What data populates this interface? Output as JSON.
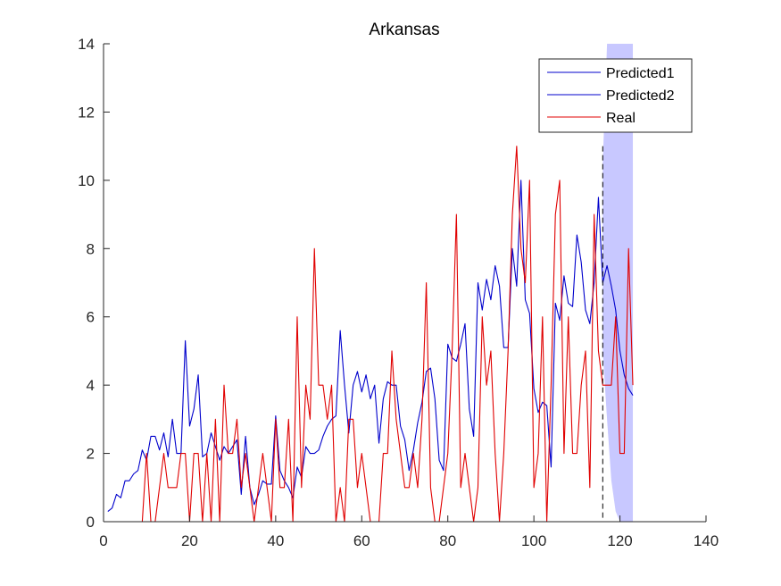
{
  "chart_data": {
    "type": "line",
    "title": "Arkansas",
    "xlabel": "",
    "ylabel": "",
    "xlim": [
      0,
      140
    ],
    "ylim": [
      0,
      14
    ],
    "xticks": [
      "0",
      "20",
      "40",
      "60",
      "80",
      "100",
      "120",
      "140"
    ],
    "yticks": [
      "0",
      "2",
      "4",
      "6",
      "8",
      "10",
      "12",
      "14"
    ],
    "grid": false,
    "legend_position": "top-right",
    "forecast_start_x": 116,
    "confidence_band": {
      "color": "#c8c8ff",
      "x": [
        116,
        117,
        118,
        119,
        120,
        121,
        122,
        123
      ],
      "lower": [
        5.0,
        3.0,
        1.2,
        0.3,
        0,
        0,
        0,
        0
      ],
      "upper": [
        10.5,
        14,
        14,
        14,
        14,
        14,
        14,
        14
      ]
    },
    "series": [
      {
        "name": "Predicted1",
        "color": "#0000cc",
        "x": [
          1,
          2,
          3,
          4,
          5,
          6,
          7,
          8,
          9,
          10,
          11,
          12,
          13,
          14,
          15,
          16,
          17,
          18,
          19,
          20,
          21,
          22,
          23,
          24,
          25,
          26,
          27,
          28,
          29,
          30,
          31,
          32,
          33,
          34,
          35,
          36,
          37,
          38,
          39,
          40,
          41,
          42,
          43,
          44,
          45,
          46,
          47,
          48,
          49,
          50,
          51,
          52,
          53,
          54,
          55,
          56,
          57,
          58,
          59,
          60,
          61,
          62,
          63,
          64,
          65,
          66,
          67,
          68,
          69,
          70,
          71,
          72,
          73,
          74,
          75,
          76,
          77,
          78,
          79,
          80,
          81,
          82,
          83,
          84,
          85,
          86,
          87,
          88,
          89,
          90,
          91,
          92,
          93,
          94,
          95,
          96,
          97,
          98,
          99,
          100,
          101,
          102,
          103,
          104,
          105,
          106,
          107,
          108,
          109,
          110,
          111,
          112,
          113,
          114,
          115,
          116
        ],
        "values": [
          0.3,
          0.4,
          0.8,
          0.7,
          1.2,
          1.2,
          1.4,
          1.5,
          2.1,
          1.8,
          2.5,
          2.5,
          2.1,
          2.6,
          1.9,
          3.0,
          2.0,
          2.0,
          5.3,
          2.8,
          3.3,
          4.3,
          1.9,
          2.0,
          2.6,
          2.2,
          1.8,
          2.2,
          2.0,
          2.2,
          2.4,
          0.8,
          2.5,
          1.0,
          0.5,
          0.8,
          1.2,
          1.1,
          1.1,
          3.1,
          1.5,
          1.2,
          1.0,
          0.7,
          1.6,
          1.3,
          2.2,
          2.0,
          2.0,
          2.1,
          2.5,
          2.8,
          3.0,
          3.1,
          5.6,
          4.0,
          2.6,
          4.0,
          4.4,
          3.8,
          4.3,
          3.6,
          4.0,
          2.3,
          3.6,
          4.1,
          4.0,
          4.0,
          2.8,
          2.4,
          1.5,
          2.1,
          2.9,
          3.5,
          4.4,
          4.5,
          3.6,
          1.8,
          1.5,
          5.2,
          4.8,
          4.7,
          5.2,
          5.8,
          3.3,
          2.5,
          7.0,
          6.2,
          7.1,
          6.5,
          7.5,
          6.9,
          5.1,
          5.1,
          8.0,
          6.9,
          10.0,
          6.5,
          6.1,
          3.9,
          3.2,
          3.5,
          3.4,
          1.6,
          6.4,
          5.9,
          7.2,
          6.4,
          6.3,
          8.4,
          7.6,
          6.2,
          5.8,
          7.0,
          9.5,
          7.0
        ]
      },
      {
        "name": "Predicted2",
        "color": "#0000cc",
        "x": [
          116,
          117,
          118,
          119,
          120,
          121,
          122,
          123
        ],
        "values": [
          7.0,
          7.5,
          6.9,
          6.2,
          5.0,
          4.3,
          3.9,
          3.7
        ]
      },
      {
        "name": "Real",
        "color": "#e00000",
        "x": [
          1,
          2,
          3,
          4,
          5,
          6,
          7,
          8,
          9,
          10,
          11,
          12,
          13,
          14,
          15,
          16,
          17,
          18,
          19,
          20,
          21,
          22,
          23,
          24,
          25,
          26,
          27,
          28,
          29,
          30,
          31,
          32,
          33,
          34,
          35,
          36,
          37,
          38,
          39,
          40,
          41,
          42,
          43,
          44,
          45,
          46,
          47,
          48,
          49,
          50,
          51,
          52,
          53,
          54,
          55,
          56,
          57,
          58,
          59,
          60,
          61,
          62,
          63,
          64,
          65,
          66,
          67,
          68,
          69,
          70,
          71,
          72,
          73,
          74,
          75,
          76,
          77,
          78,
          79,
          80,
          81,
          82,
          83,
          84,
          85,
          86,
          87,
          88,
          89,
          90,
          91,
          92,
          93,
          94,
          95,
          96,
          97,
          98,
          99,
          100,
          101,
          102,
          103,
          104,
          105,
          106,
          107,
          108,
          109,
          110,
          111,
          112,
          113,
          114,
          115,
          116,
          117,
          118,
          119,
          120,
          121,
          122,
          123
        ],
        "values": [
          0,
          0,
          0,
          0,
          0,
          0,
          0,
          0,
          0,
          2,
          0,
          0,
          1,
          2,
          1,
          1,
          1,
          2,
          2,
          0,
          2,
          2,
          0,
          2,
          0,
          3,
          0,
          4,
          2,
          2,
          3,
          1,
          2,
          1,
          0,
          1,
          2,
          1,
          0,
          3,
          1,
          1,
          3,
          0,
          6,
          1,
          4,
          3,
          8,
          4,
          4,
          3,
          4,
          0,
          1,
          0,
          3,
          3,
          1,
          2,
          1,
          0,
          0,
          0,
          2,
          2,
          5,
          3,
          2,
          1,
          1,
          2,
          1,
          3,
          7,
          1,
          0,
          0,
          1,
          2,
          5,
          9,
          1,
          2,
          1,
          0,
          1,
          6,
          4,
          5,
          2,
          0,
          2,
          5,
          9,
          11,
          8,
          7,
          10,
          1,
          2,
          6,
          0,
          4,
          9,
          10,
          2,
          6,
          2,
          2,
          4,
          5,
          1,
          9,
          5,
          4,
          4,
          4,
          6,
          2,
          2,
          8,
          4
        ]
      }
    ],
    "legend": [
      "Predicted1",
      "Predicted2",
      "Real"
    ]
  }
}
